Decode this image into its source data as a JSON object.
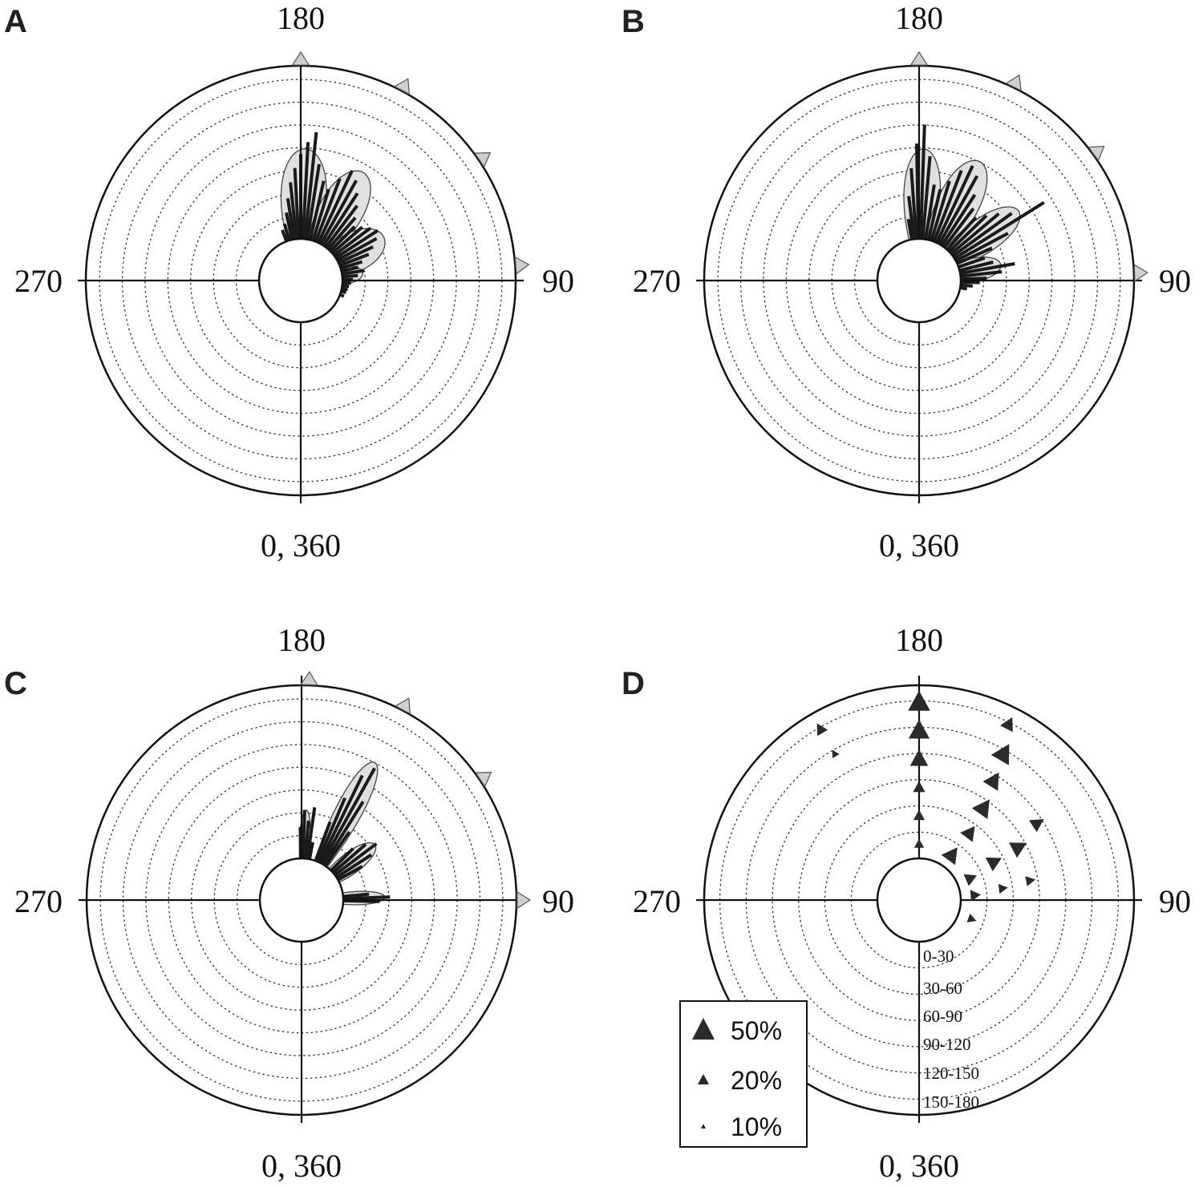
{
  "chart_data": [
    {
      "panel": "A",
      "type": "polar-histogram",
      "angle_labels": {
        "top": "180",
        "right": "90",
        "left": "270",
        "bottom": "0, 360"
      },
      "r_max": 10,
      "rings": 7,
      "lobes": [
        {
          "angle": 178,
          "value": 5.2,
          "width": 20
        },
        {
          "angle": 150,
          "value": 4.8,
          "width": 20
        },
        {
          "angle": 118,
          "value": 3.0,
          "width": 22
        },
        {
          "angle": 97,
          "value": 1.2,
          "width": 12
        }
      ],
      "bars": [
        {
          "angle": 200,
          "value": 0.7
        },
        {
          "angle": 196,
          "value": 1.0
        },
        {
          "angle": 192,
          "value": 1.6
        },
        {
          "angle": 189,
          "value": 2.4
        },
        {
          "angle": 186,
          "value": 3.3
        },
        {
          "angle": 183,
          "value": 4.1
        },
        {
          "angle": 180,
          "value": 4.9
        },
        {
          "angle": 177,
          "value": 5.6
        },
        {
          "angle": 174,
          "value": 6.2
        },
        {
          "angle": 171,
          "value": 4.4
        },
        {
          "angle": 167,
          "value": 3.5
        },
        {
          "angle": 163,
          "value": 3.1
        },
        {
          "angle": 159,
          "value": 3.9
        },
        {
          "angle": 155,
          "value": 4.6
        },
        {
          "angle": 151,
          "value": 4.2
        },
        {
          "angle": 147,
          "value": 3.6
        },
        {
          "angle": 143,
          "value": 3.0
        },
        {
          "angle": 139,
          "value": 2.4
        },
        {
          "angle": 135,
          "value": 2.0
        },
        {
          "angle": 131,
          "value": 2.3
        },
        {
          "angle": 127,
          "value": 2.6
        },
        {
          "angle": 123,
          "value": 2.9
        },
        {
          "angle": 119,
          "value": 2.6
        },
        {
          "angle": 115,
          "value": 2.2
        },
        {
          "angle": 111,
          "value": 1.8
        },
        {
          "angle": 107,
          "value": 1.3
        },
        {
          "angle": 103,
          "value": 1.0
        },
        {
          "angle": 99,
          "value": 1.3
        },
        {
          "angle": 95,
          "value": 0.9
        },
        {
          "angle": 91,
          "value": 0.6
        },
        {
          "angle": 87,
          "value": 0.5
        },
        {
          "angle": 83,
          "value": 0.4
        },
        {
          "angle": 79,
          "value": 0.35
        },
        {
          "angle": 75,
          "value": 0.3
        },
        {
          "angle": 70,
          "value": 0.25
        }
      ],
      "means": [
        {
          "angle": 180,
          "size": "large"
        },
        {
          "angle": 152,
          "size": "large"
        },
        {
          "angle": 124,
          "size": "large"
        },
        {
          "angle": 94,
          "size": "large"
        }
      ]
    },
    {
      "panel": "B",
      "type": "polar-histogram",
      "angle_labels": {
        "top": "180",
        "right": "90",
        "left": "270",
        "bottom": "0, 360"
      },
      "r_max": 10,
      "rings": 7,
      "lobes": [
        {
          "angle": 178,
          "value": 5.2,
          "width": 16
        },
        {
          "angle": 153,
          "value": 5.3,
          "width": 18
        },
        {
          "angle": 125,
          "value": 4.6,
          "width": 16
        },
        {
          "angle": 101,
          "value": 2.4,
          "width": 14
        }
      ],
      "bars": [
        {
          "angle": 190,
          "value": 1.2
        },
        {
          "angle": 187,
          "value": 2.5
        },
        {
          "angle": 184,
          "value": 4.1
        },
        {
          "angle": 181,
          "value": 5.5
        },
        {
          "angle": 178,
          "value": 6.6
        },
        {
          "angle": 175,
          "value": 4.8
        },
        {
          "angle": 171,
          "value": 3.2
        },
        {
          "angle": 167,
          "value": 3.0
        },
        {
          "angle": 163,
          "value": 3.6
        },
        {
          "angle": 159,
          "value": 4.4
        },
        {
          "angle": 155,
          "value": 4.9
        },
        {
          "angle": 151,
          "value": 4.5
        },
        {
          "angle": 147,
          "value": 3.5
        },
        {
          "angle": 143,
          "value": 2.8
        },
        {
          "angle": 138,
          "value": 2.5
        },
        {
          "angle": 134,
          "value": 3.0
        },
        {
          "angle": 130,
          "value": 3.6
        },
        {
          "angle": 126,
          "value": 4.2
        },
        {
          "angle": 122,
          "value": 6.1
        },
        {
          "angle": 118,
          "value": 3.4
        },
        {
          "angle": 114,
          "value": 2.2
        },
        {
          "angle": 109,
          "value": 1.6
        },
        {
          "angle": 104,
          "value": 2.0
        },
        {
          "angle": 100,
          "value": 3.2
        },
        {
          "angle": 96,
          "value": 2.4
        },
        {
          "angle": 92,
          "value": 1.5
        },
        {
          "angle": 88,
          "value": 1.1
        },
        {
          "angle": 84,
          "value": 0.7
        },
        {
          "angle": 80,
          "value": 0.4
        }
      ],
      "means": [
        {
          "angle": 180,
          "size": "large"
        },
        {
          "angle": 154,
          "size": "large"
        },
        {
          "angle": 126,
          "size": "large"
        },
        {
          "angle": 92,
          "size": "large"
        }
      ]
    },
    {
      "panel": "C",
      "type": "polar-histogram",
      "angle_labels": {
        "top": "180",
        "right": "90",
        "left": "270",
        "bottom": "0, 360"
      },
      "r_max": 10,
      "rings": 7,
      "lobes": [
        {
          "angle": 177,
          "value": 2.8,
          "width": 6
        },
        {
          "angle": 152,
          "value": 6.6,
          "width": 10
        },
        {
          "angle": 127,
          "value": 2.9,
          "width": 12
        },
        {
          "angle": 92,
          "value": 2.4,
          "width": 8
        }
      ],
      "bars": [
        {
          "angle": 181,
          "value": 1.8
        },
        {
          "angle": 178,
          "value": 2.8
        },
        {
          "angle": 175,
          "value": 2.2
        },
        {
          "angle": 172,
          "value": 3.0
        },
        {
          "angle": 169,
          "value": 1.0
        },
        {
          "angle": 160,
          "value": 2.4
        },
        {
          "angle": 157,
          "value": 4.0
        },
        {
          "angle": 154,
          "value": 5.6
        },
        {
          "angle": 151,
          "value": 6.3
        },
        {
          "angle": 148,
          "value": 4.3
        },
        {
          "angle": 145,
          "value": 2.4
        },
        {
          "angle": 135,
          "value": 1.8
        },
        {
          "angle": 131,
          "value": 2.5
        },
        {
          "angle": 127,
          "value": 3.0
        },
        {
          "angle": 123,
          "value": 2.4
        },
        {
          "angle": 119,
          "value": 1.6
        },
        {
          "angle": 95,
          "value": 1.5
        },
        {
          "angle": 92,
          "value": 2.7
        },
        {
          "angle": 89,
          "value": 2.1
        }
      ],
      "means": [
        {
          "angle": 178,
          "size": "large"
        },
        {
          "angle": 152,
          "size": "large"
        },
        {
          "angle": 124,
          "size": "large"
        },
        {
          "angle": 90,
          "size": "large"
        }
      ]
    },
    {
      "panel": "D",
      "type": "polar-marker-plot",
      "angle_labels": {
        "top": "180",
        "right": "90",
        "left": "270",
        "bottom": "0, 360"
      },
      "ring_labels": [
        "0-30",
        "30-60",
        "60-90",
        "90-120",
        "120-150",
        "150-180"
      ],
      "legend": [
        {
          "label": "50%",
          "value": 50
        },
        {
          "label": "20%",
          "value": 20
        },
        {
          "label": "10%",
          "value": 10
        }
      ],
      "markers": [
        {
          "angle": 180,
          "ring": 6,
          "percent": 50
        },
        {
          "angle": 180,
          "ring": 5,
          "percent": 45
        },
        {
          "angle": 180,
          "ring": 4,
          "percent": 32
        },
        {
          "angle": 180,
          "ring": 3,
          "percent": 12
        },
        {
          "angle": 180,
          "ring": 2,
          "percent": 10
        },
        {
          "angle": 180,
          "ring": 1,
          "percent": 7
        },
        {
          "angle": 153,
          "ring": 6,
          "percent": 18
        },
        {
          "angle": 150,
          "ring": 5,
          "percent": 42
        },
        {
          "angle": 148,
          "ring": 4,
          "percent": 30
        },
        {
          "angle": 145,
          "ring": 3,
          "percent": 36
        },
        {
          "angle": 143,
          "ring": 2,
          "percent": 22
        },
        {
          "angle": 144,
          "ring": 1,
          "percent": 28
        },
        {
          "angle": 123,
          "ring": 4,
          "percent": 18
        },
        {
          "angle": 118,
          "ring": 3,
          "percent": 28
        },
        {
          "angle": 117,
          "ring": 2,
          "percent": 22
        },
        {
          "angle": 113,
          "ring": 1,
          "percent": 14
        },
        {
          "angle": 100,
          "ring": 3,
          "percent": 8
        },
        {
          "angle": 98,
          "ring": 2,
          "percent": 7
        },
        {
          "angle": 95,
          "ring": 1,
          "percent": 10
        },
        {
          "angle": 70,
          "ring": 1,
          "percent": 6
        },
        {
          "angle": 210,
          "ring": 6,
          "percent": 12
        },
        {
          "angle": 210,
          "ring": 5,
          "percent": 4
        }
      ]
    }
  ]
}
